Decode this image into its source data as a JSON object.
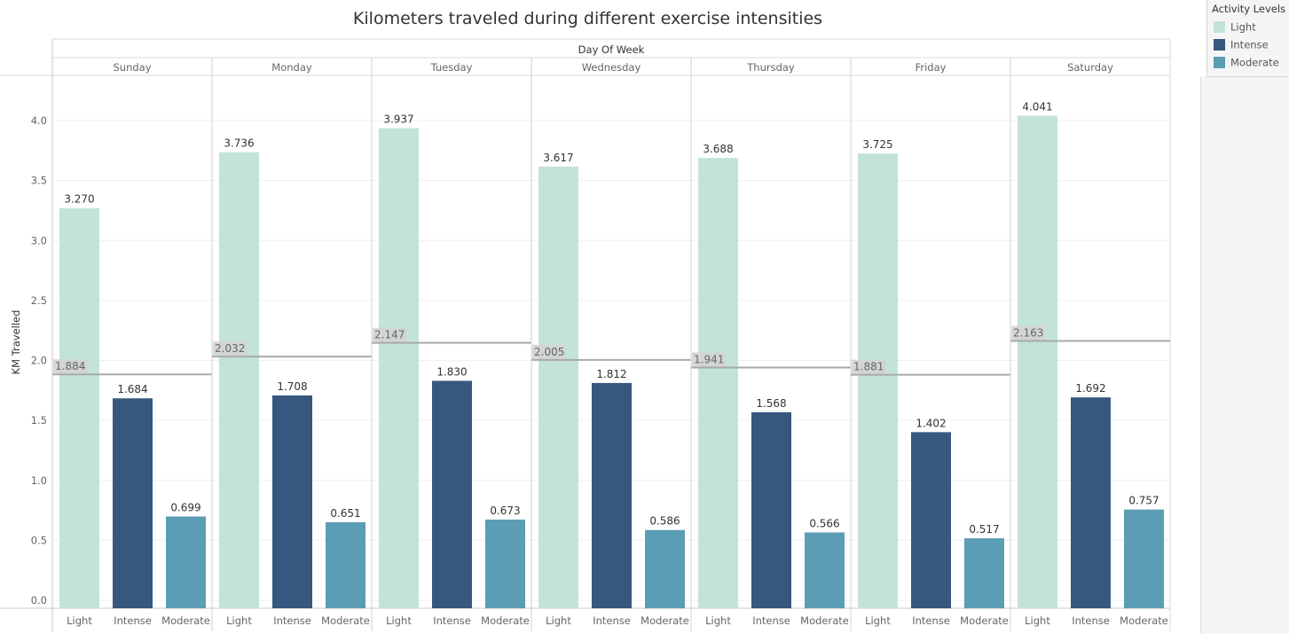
{
  "chart_data": {
    "type": "bar",
    "title": "Kilometers traveled during different exercise intensities",
    "column_header": "Day Of Week",
    "ylabel": "KM Travelled",
    "ylim": [
      0,
      4.3
    ],
    "yticks": [
      "0.0",
      "0.5",
      "1.0",
      "1.5",
      "2.0",
      "2.5",
      "3.0",
      "3.5",
      "4.0"
    ],
    "grid": true,
    "legend_position": "top-right",
    "legend_title": "Activity Levels",
    "series_colors": {
      "Light": "#c3e3d9",
      "Intense": "#36587f",
      "Moderate": "#5b9db4"
    },
    "groups": [
      {
        "day": "Sunday",
        "average": 1.884,
        "average_label": "1.884",
        "bars": [
          {
            "level": "Light",
            "value": 3.27,
            "label": "3.270"
          },
          {
            "level": "Intense",
            "value": 1.684,
            "label": "1.684"
          },
          {
            "level": "Moderate",
            "value": 0.699,
            "label": "0.699"
          }
        ]
      },
      {
        "day": "Monday",
        "average": 2.032,
        "average_label": "2.032",
        "bars": [
          {
            "level": "Light",
            "value": 3.736,
            "label": "3.736"
          },
          {
            "level": "Intense",
            "value": 1.708,
            "label": "1.708"
          },
          {
            "level": "Moderate",
            "value": 0.651,
            "label": "0.651"
          }
        ]
      },
      {
        "day": "Tuesday",
        "average": 2.147,
        "average_label": "2.147",
        "bars": [
          {
            "level": "Light",
            "value": 3.937,
            "label": "3.937"
          },
          {
            "level": "Intense",
            "value": 1.83,
            "label": "1.830"
          },
          {
            "level": "Moderate",
            "value": 0.673,
            "label": "0.673"
          }
        ]
      },
      {
        "day": "Wednesday",
        "average": 2.005,
        "average_label": "2.005",
        "bars": [
          {
            "level": "Light",
            "value": 3.617,
            "label": "3.617"
          },
          {
            "level": "Intense",
            "value": 1.812,
            "label": "1.812"
          },
          {
            "level": "Moderate",
            "value": 0.586,
            "label": "0.586"
          }
        ]
      },
      {
        "day": "Thursday",
        "average": 1.941,
        "average_label": "1.941",
        "bars": [
          {
            "level": "Light",
            "value": 3.688,
            "label": "3.688"
          },
          {
            "level": "Intense",
            "value": 1.568,
            "label": "1.568"
          },
          {
            "level": "Moderate",
            "value": 0.566,
            "label": "0.566"
          }
        ]
      },
      {
        "day": "Friday",
        "average": 1.881,
        "average_label": "1.881",
        "bars": [
          {
            "level": "Light",
            "value": 3.725,
            "label": "3.725"
          },
          {
            "level": "Intense",
            "value": 1.402,
            "label": "1.402"
          },
          {
            "level": "Moderate",
            "value": 0.517,
            "label": "0.517"
          }
        ]
      },
      {
        "day": "Saturday",
        "average": 2.163,
        "average_label": "2.163",
        "bars": [
          {
            "level": "Light",
            "value": 4.041,
            "label": "4.041"
          },
          {
            "level": "Intense",
            "value": 1.692,
            "label": "1.692"
          },
          {
            "level": "Moderate",
            "value": 0.757,
            "label": "0.757"
          }
        ]
      }
    ]
  },
  "legend": {
    "title": "Activity Levels",
    "items": [
      {
        "label": "Light",
        "color": "#c3e3d9"
      },
      {
        "label": "Intense",
        "color": "#36587f"
      },
      {
        "label": "Moderate",
        "color": "#5b9db4"
      }
    ]
  }
}
